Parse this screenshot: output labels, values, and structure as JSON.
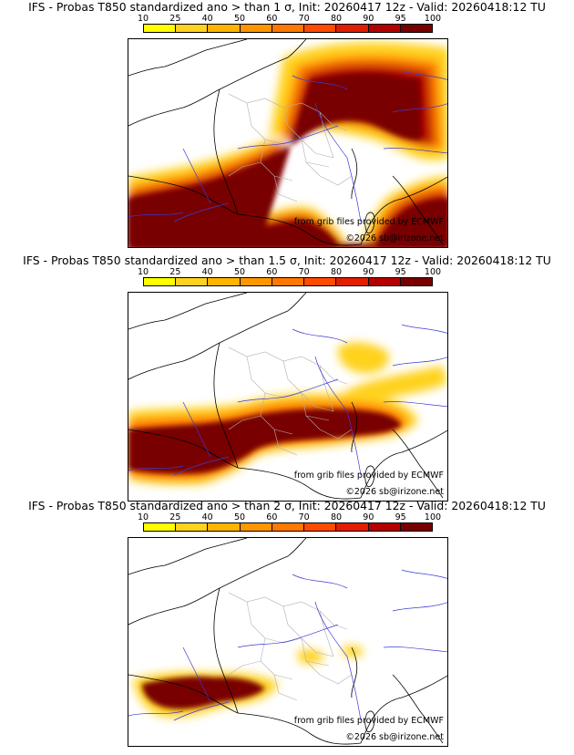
{
  "colorbar": {
    "ticks": [
      "10",
      "25",
      "40",
      "50",
      "60",
      "70",
      "80",
      "90",
      "95",
      "100"
    ],
    "colors": [
      "#ffff00",
      "#ffd21e",
      "#ffb400",
      "#ff9600",
      "#ff7800",
      "#ff4b00",
      "#e11e00",
      "#b40000",
      "#780000"
    ]
  },
  "panels": [
    {
      "title": "IFS - Probas T850  standardized ano > than 1 σ, Init: 20260417 12z - Valid: 20260418:12 TU",
      "credit_source": "from grib files provided by ECMWF",
      "credit_copy": "©2026 sb@irizone.net"
    },
    {
      "title": "IFS - Probas T850  standardized ano > than 1.5 σ, Init: 20260417 12z - Valid: 20260418:12 TU",
      "credit_source": "from grib files provided by ECMWF",
      "credit_copy": "©2026 sb@irizone.net"
    },
    {
      "title": "IFS - Probas T850  standardized ano > than 2 σ, Init: 20260417 12z - Valid: 20260418:12 TU",
      "credit_source": "from grib files provided by ECMWF",
      "credit_copy": "©2026 sb@irizone.net"
    }
  ]
}
